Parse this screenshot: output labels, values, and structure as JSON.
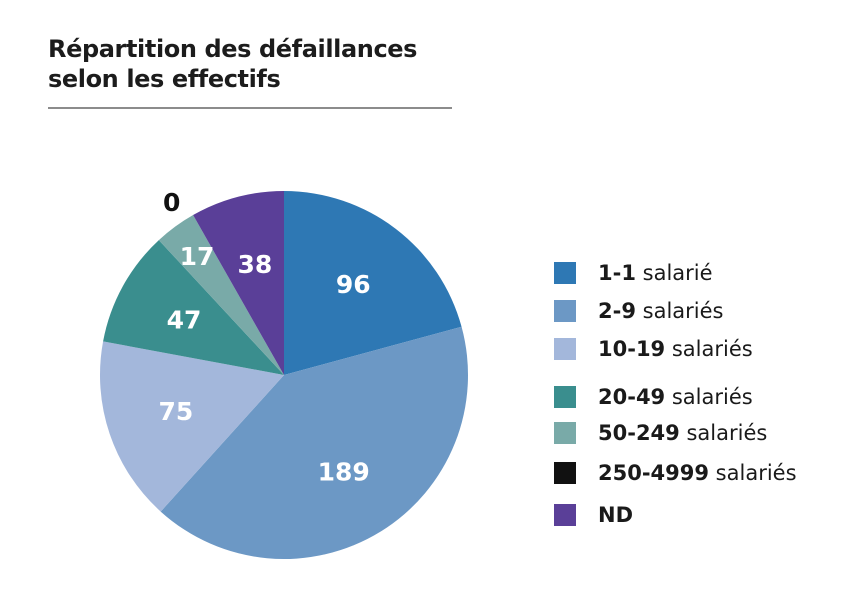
{
  "chart_data": {
    "type": "pie",
    "title_line1": "Répartition des défaillances",
    "title_line2": "selon les effectifs",
    "start": "top, clockwise",
    "slices": [
      {
        "range": "1-1",
        "unit": "salarié",
        "value": 96,
        "label": "96",
        "color": "#2e78b4"
      },
      {
        "range": "2-9",
        "unit": "salariés",
        "value": 189,
        "label": "189",
        "color": "#6c98c5"
      },
      {
        "range": "10-19",
        "unit": "salariés",
        "value": 75,
        "label": "75",
        "color": "#a3b7db"
      },
      {
        "range": "20-49",
        "unit": "salariés",
        "value": 47,
        "label": "47",
        "color": "#3a8e8e"
      },
      {
        "range": "50-249",
        "unit": "salariés",
        "value": 17,
        "label": "17",
        "color": "#79aaa8"
      },
      {
        "range": "250-4999",
        "unit": "salariés",
        "value": 0,
        "label": "0",
        "color": "#111111"
      },
      {
        "range": "ND",
        "unit": "",
        "value": 38,
        "label": "38",
        "color": "#5a3f98"
      }
    ]
  }
}
